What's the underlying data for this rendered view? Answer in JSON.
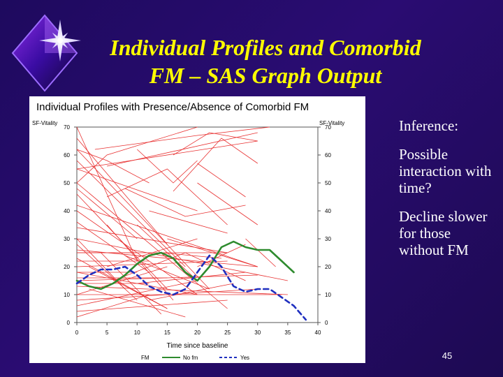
{
  "slide": {
    "title_line1": "Individual Profiles and Comorbid",
    "title_line2": "FM – SAS Graph Output",
    "page_number": "45",
    "colors": {
      "background": "#24106a",
      "title": "#ffff00",
      "text": "#ffffff"
    },
    "icon": "star-diamond-icon"
  },
  "sidebar": {
    "paragraphs": [
      {
        "text": "Inference:"
      },
      {
        "text": "Possible interaction with time?"
      },
      {
        "text": "Decline slower for those without FM"
      }
    ]
  },
  "chart_data": {
    "type": "line",
    "title": "Individual Profiles with Presence/Absence of Comorbid FM",
    "ylabel_left": "SF-Vitality",
    "ylabel_right": "SF-Vitality",
    "xlabel": "Time since baseline",
    "xlim": [
      0,
      40
    ],
    "ylim": [
      0,
      70
    ],
    "x_ticks": [
      0,
      5,
      10,
      15,
      20,
      25,
      30,
      35,
      40
    ],
    "y_ticks": [
      0,
      10,
      20,
      30,
      40,
      50,
      60,
      70
    ],
    "grid": false,
    "legend": {
      "placement": "bottom",
      "title": "FM",
      "entries": [
        {
          "label": "No fm",
          "color": "#2e8b2e",
          "style": "solid"
        },
        {
          "label": "Yes",
          "color": "#1f2fbf",
          "style": "dashed"
        }
      ]
    },
    "series": [
      {
        "name": "No fm",
        "color": "#2e8b2e",
        "style": "solid",
        "x": [
          0,
          2,
          4,
          6,
          8,
          10,
          12,
          14,
          16,
          18,
          20,
          22,
          24,
          26,
          28,
          30,
          32,
          34,
          36
        ],
        "y": [
          15,
          13,
          12,
          14,
          17,
          21,
          24,
          25,
          23,
          18,
          15,
          20,
          27,
          29,
          27,
          26,
          26,
          22,
          18
        ]
      },
      {
        "name": "Yes",
        "color": "#1f2fbf",
        "style": "dashed",
        "x": [
          0,
          2,
          4,
          6,
          8,
          10,
          12,
          14,
          16,
          18,
          20,
          22,
          24,
          26,
          28,
          30,
          32,
          34,
          36,
          38
        ],
        "y": [
          14,
          17,
          19,
          19,
          20,
          17,
          13,
          11,
          10,
          12,
          18,
          24,
          20,
          13,
          11,
          12,
          12,
          9,
          6,
          1
        ]
      }
    ],
    "individual_profiles": {
      "color": "#e83030",
      "lines": [
        [
          [
            0,
            70
          ],
          [
            10,
            22
          ]
        ],
        [
          [
            0,
            66
          ],
          [
            15,
            28
          ]
        ],
        [
          [
            0,
            62
          ],
          [
            22,
            12
          ]
        ],
        [
          [
            0,
            58
          ],
          [
            18,
            20
          ]
        ],
        [
          [
            0,
            50
          ],
          [
            25,
            5
          ]
        ],
        [
          [
            0,
            46
          ],
          [
            15,
            12
          ]
        ],
        [
          [
            0,
            42
          ],
          [
            30,
            20
          ]
        ],
        [
          [
            0,
            40
          ],
          [
            20,
            10
          ]
        ],
        [
          [
            0,
            36
          ],
          [
            12,
            18
          ]
        ],
        [
          [
            0,
            34
          ],
          [
            25,
            25
          ]
        ],
        [
          [
            0,
            30
          ],
          [
            35,
            15
          ]
        ],
        [
          [
            0,
            28
          ],
          [
            10,
            8
          ]
        ],
        [
          [
            0,
            26
          ],
          [
            30,
            20
          ]
        ],
        [
          [
            0,
            25
          ],
          [
            25,
            25
          ]
        ],
        [
          [
            0,
            23
          ],
          [
            15,
            5
          ]
        ],
        [
          [
            0,
            20
          ],
          [
            25,
            22
          ]
        ],
        [
          [
            0,
            18
          ],
          [
            20,
            10
          ]
        ],
        [
          [
            0,
            15
          ],
          [
            30,
            17
          ]
        ],
        [
          [
            0,
            13
          ],
          [
            35,
            10
          ]
        ],
        [
          [
            0,
            10
          ],
          [
            15,
            20
          ]
        ],
        [
          [
            0,
            8
          ],
          [
            30,
            12
          ]
        ],
        [
          [
            0,
            6
          ],
          [
            20,
            15
          ]
        ],
        [
          [
            0,
            4
          ],
          [
            25,
            8
          ]
        ],
        [
          [
            0,
            2
          ],
          [
            12,
            10
          ]
        ],
        [
          [
            0,
            55
          ],
          [
            20,
            40
          ]
        ],
        [
          [
            0,
            48
          ],
          [
            10,
            30
          ]
        ],
        [
          [
            0,
            55
          ],
          [
            30,
            65
          ]
        ],
        [
          [
            0,
            50
          ],
          [
            5,
            60
          ],
          [
            20,
            70
          ]
        ],
        [
          [
            3,
            62
          ],
          [
            20,
            67
          ],
          [
            32,
            70
          ]
        ],
        [
          [
            5,
            56
          ],
          [
            30,
            68
          ]
        ],
        [
          [
            0,
            62
          ],
          [
            5,
            58
          ],
          [
            12,
            50
          ]
        ],
        [
          [
            20,
            57
          ],
          [
            28,
            45
          ]
        ],
        [
          [
            20,
            50
          ],
          [
            30,
            35
          ]
        ],
        [
          [
            15,
            30
          ],
          [
            30,
            20
          ]
        ],
        [
          [
            5,
            45
          ],
          [
            15,
            55
          ],
          [
            25,
            35
          ]
        ],
        [
          [
            5,
            20
          ],
          [
            20,
            30
          ]
        ],
        [
          [
            10,
            35
          ],
          [
            20,
            15
          ]
        ],
        [
          [
            12,
            40
          ],
          [
            25,
            32
          ]
        ],
        [
          [
            8,
            48
          ],
          [
            18,
            38
          ],
          [
            28,
            42
          ]
        ],
        [
          [
            16,
            47
          ],
          [
            24,
            66
          ],
          [
            30,
            57
          ]
        ],
        [
          [
            16,
            60
          ],
          [
            22,
            68
          ],
          [
            30,
            65
          ]
        ],
        [
          [
            10,
            62
          ],
          [
            16,
            50
          ],
          [
            20,
            58
          ]
        ],
        [
          [
            28,
            30
          ],
          [
            33,
            20
          ]
        ],
        [
          [
            20,
            20
          ],
          [
            28,
            28
          ]
        ],
        [
          [
            14,
            25
          ],
          [
            24,
            23
          ]
        ],
        [
          [
            6,
            15
          ],
          [
            18,
            25
          ],
          [
            28,
            15
          ]
        ],
        [
          [
            0,
            25
          ],
          [
            10,
            25
          ]
        ],
        [
          [
            0,
            22
          ],
          [
            12,
            22
          ]
        ],
        [
          [
            0,
            18
          ],
          [
            10,
            18
          ]
        ],
        [
          [
            0,
            16
          ],
          [
            15,
            16
          ]
        ],
        [
          [
            0,
            14
          ],
          [
            12,
            14
          ]
        ],
        [
          [
            0,
            10
          ],
          [
            34,
            10
          ]
        ],
        [
          [
            2,
            20
          ],
          [
            15,
            5
          ]
        ],
        [
          [
            4,
            25
          ],
          [
            14,
            3
          ]
        ],
        [
          [
            2,
            12
          ],
          [
            18,
            2
          ]
        ],
        [
          [
            0,
            30
          ],
          [
            8,
            12
          ]
        ],
        [
          [
            5,
            35
          ],
          [
            16,
            8
          ]
        ],
        [
          [
            8,
            24
          ],
          [
            22,
            12
          ]
        ],
        [
          [
            10,
            14
          ],
          [
            28,
            18
          ]
        ],
        [
          [
            12,
            8
          ],
          [
            26,
            14
          ]
        ]
      ]
    }
  }
}
